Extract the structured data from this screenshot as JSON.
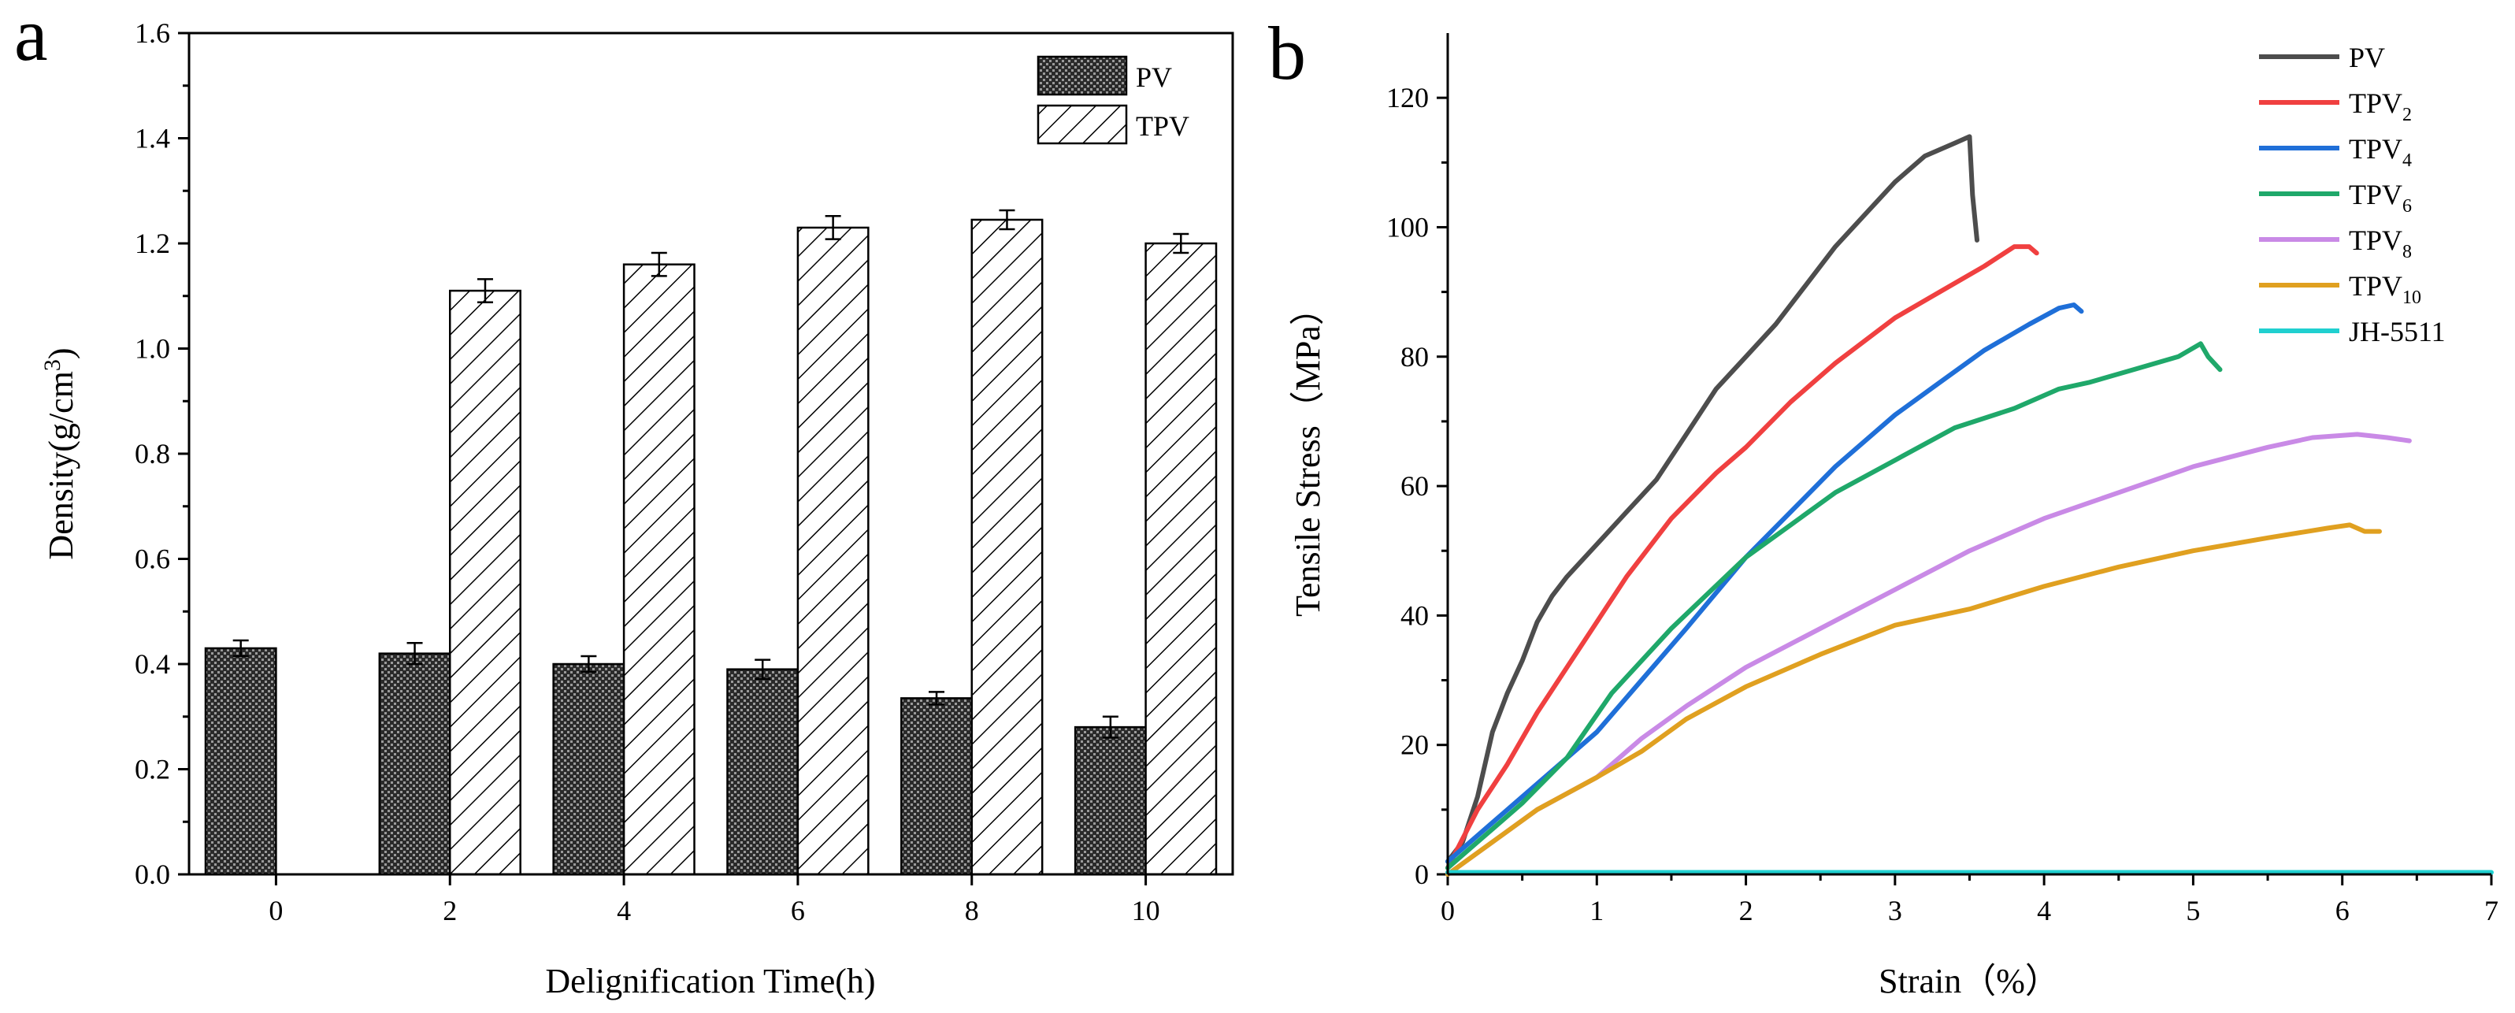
{
  "chart_data": [
    {
      "panel": "a",
      "type": "bar",
      "title": "",
      "xlabel": "Delignification Time(h)",
      "ylabel": "Density(g/cm",
      "ylabel_sup": "3",
      "ylabel_end": ")",
      "ylim": [
        0,
        1.6
      ],
      "yticks": [
        "0.0",
        "0.2",
        "0.4",
        "0.6",
        "0.8",
        "1.0",
        "1.2",
        "1.4",
        "1.6"
      ],
      "categories": [
        "0",
        "2",
        "4",
        "6",
        "8",
        "10"
      ],
      "legend_position": "top-right",
      "series": [
        {
          "name": "PV",
          "pattern": "crosshatch-dark",
          "values": [
            0.43,
            0.42,
            0.4,
            0.39,
            0.335,
            0.28
          ],
          "errors": [
            0.015,
            0.02,
            0.015,
            0.018,
            0.012,
            0.02
          ]
        },
        {
          "name": "TPV",
          "pattern": "diagonal-hatch",
          "values": [
            null,
            1.11,
            1.16,
            1.23,
            1.245,
            1.2
          ],
          "errors": [
            null,
            0.022,
            0.022,
            0.022,
            0.018,
            0.018
          ]
        }
      ]
    },
    {
      "panel": "b",
      "type": "line",
      "title": "",
      "xlabel": "Strain（%）",
      "ylabel": "Tensile Stress（MPa）",
      "xlim": [
        0,
        7
      ],
      "ylim": [
        0,
        130
      ],
      "xticks": [
        "0",
        "1",
        "2",
        "3",
        "4",
        "5",
        "6",
        "7"
      ],
      "yticks": [
        "0",
        "20",
        "40",
        "60",
        "80",
        "100",
        "120"
      ],
      "legend_position": "top-right",
      "series": [
        {
          "name": "PV",
          "sub": "",
          "color": "#4d4d4d",
          "points": [
            [
              0,
              2
            ],
            [
              0.1,
              5
            ],
            [
              0.2,
              12
            ],
            [
              0.3,
              22
            ],
            [
              0.4,
              28
            ],
            [
              0.5,
              33
            ],
            [
              0.6,
              39
            ],
            [
              0.7,
              43
            ],
            [
              0.8,
              46
            ],
            [
              1.0,
              51
            ],
            [
              1.2,
              56
            ],
            [
              1.4,
              61
            ],
            [
              1.6,
              68
            ],
            [
              1.8,
              75
            ],
            [
              2.0,
              80
            ],
            [
              2.2,
              85
            ],
            [
              2.4,
              91
            ],
            [
              2.6,
              97
            ],
            [
              2.8,
              102
            ],
            [
              3.0,
              107
            ],
            [
              3.2,
              111
            ],
            [
              3.4,
              113
            ],
            [
              3.5,
              114
            ],
            [
              3.52,
              105
            ],
            [
              3.55,
              98
            ]
          ]
        },
        {
          "name": "TPV",
          "sub": "2",
          "color": "#f04040",
          "points": [
            [
              0,
              1
            ],
            [
              0.2,
              10
            ],
            [
              0.4,
              17
            ],
            [
              0.6,
              25
            ],
            [
              0.8,
              32
            ],
            [
              1.0,
              39
            ],
            [
              1.2,
              46
            ],
            [
              1.5,
              55
            ],
            [
              1.8,
              62
            ],
            [
              2.0,
              66
            ],
            [
              2.3,
              73
            ],
            [
              2.6,
              79
            ],
            [
              3.0,
              86
            ],
            [
              3.3,
              90
            ],
            [
              3.6,
              94
            ],
            [
              3.8,
              97
            ],
            [
              3.9,
              97
            ],
            [
              3.95,
              96
            ]
          ]
        },
        {
          "name": "TPV",
          "sub": "4",
          "color": "#1f6fd8",
          "points": [
            [
              0,
              2
            ],
            [
              0.3,
              8
            ],
            [
              0.6,
              14
            ],
            [
              1.0,
              22
            ],
            [
              1.3,
              30
            ],
            [
              1.6,
              38
            ],
            [
              2.0,
              49
            ],
            [
              2.3,
              56
            ],
            [
              2.6,
              63
            ],
            [
              3.0,
              71
            ],
            [
              3.3,
              76
            ],
            [
              3.6,
              81
            ],
            [
              3.9,
              85
            ],
            [
              4.1,
              87.5
            ],
            [
              4.2,
              88
            ],
            [
              4.25,
              87
            ]
          ]
        },
        {
          "name": "TPV",
          "sub": "6",
          "color": "#1fa86a",
          "points": [
            [
              0,
              1
            ],
            [
              0.2,
              5
            ],
            [
              0.5,
              11
            ],
            [
              0.8,
              18
            ],
            [
              1.1,
              28
            ],
            [
              1.5,
              38
            ],
            [
              2.0,
              49
            ],
            [
              2.3,
              54
            ],
            [
              2.6,
              59
            ],
            [
              3.0,
              64
            ],
            [
              3.4,
              69
            ],
            [
              3.8,
              72
            ],
            [
              4.1,
              75
            ],
            [
              4.3,
              76
            ],
            [
              4.6,
              78
            ],
            [
              4.9,
              80
            ],
            [
              5.05,
              82
            ],
            [
              5.1,
              80
            ],
            [
              5.18,
              78
            ]
          ]
        },
        {
          "name": "TPV",
          "sub": "8",
          "color": "#c98ae6",
          "points": [
            [
              0,
              0
            ],
            [
              0.3,
              5
            ],
            [
              0.6,
              10
            ],
            [
              1.0,
              15
            ],
            [
              1.3,
              21
            ],
            [
              1.6,
              26
            ],
            [
              2.0,
              32
            ],
            [
              2.5,
              38
            ],
            [
              3.0,
              44
            ],
            [
              3.5,
              50
            ],
            [
              4.0,
              55
            ],
            [
              4.5,
              59
            ],
            [
              5.0,
              63
            ],
            [
              5.5,
              66
            ],
            [
              5.8,
              67.5
            ],
            [
              6.1,
              68
            ],
            [
              6.3,
              67.5
            ],
            [
              6.45,
              67
            ]
          ]
        },
        {
          "name": "TPV",
          "sub": "10",
          "color": "#e0a020",
          "points": [
            [
              0,
              0
            ],
            [
              0.3,
              5
            ],
            [
              0.6,
              10
            ],
            [
              1.0,
              15
            ],
            [
              1.3,
              19
            ],
            [
              1.6,
              24
            ],
            [
              2.0,
              29
            ],
            [
              2.5,
              34
            ],
            [
              3.0,
              38.5
            ],
            [
              3.5,
              41
            ],
            [
              4.0,
              44.5
            ],
            [
              4.5,
              47.5
            ],
            [
              5.0,
              50
            ],
            [
              5.5,
              52
            ],
            [
              5.9,
              53.5
            ],
            [
              6.05,
              54
            ],
            [
              6.15,
              53
            ],
            [
              6.25,
              53
            ]
          ]
        },
        {
          "name": "JH-5511",
          "sub": "",
          "color": "#20d0d0",
          "points": [
            [
              0,
              0.3
            ],
            [
              7,
              0.3
            ]
          ]
        }
      ]
    }
  ],
  "panels": {
    "a": "a",
    "b": "b"
  }
}
